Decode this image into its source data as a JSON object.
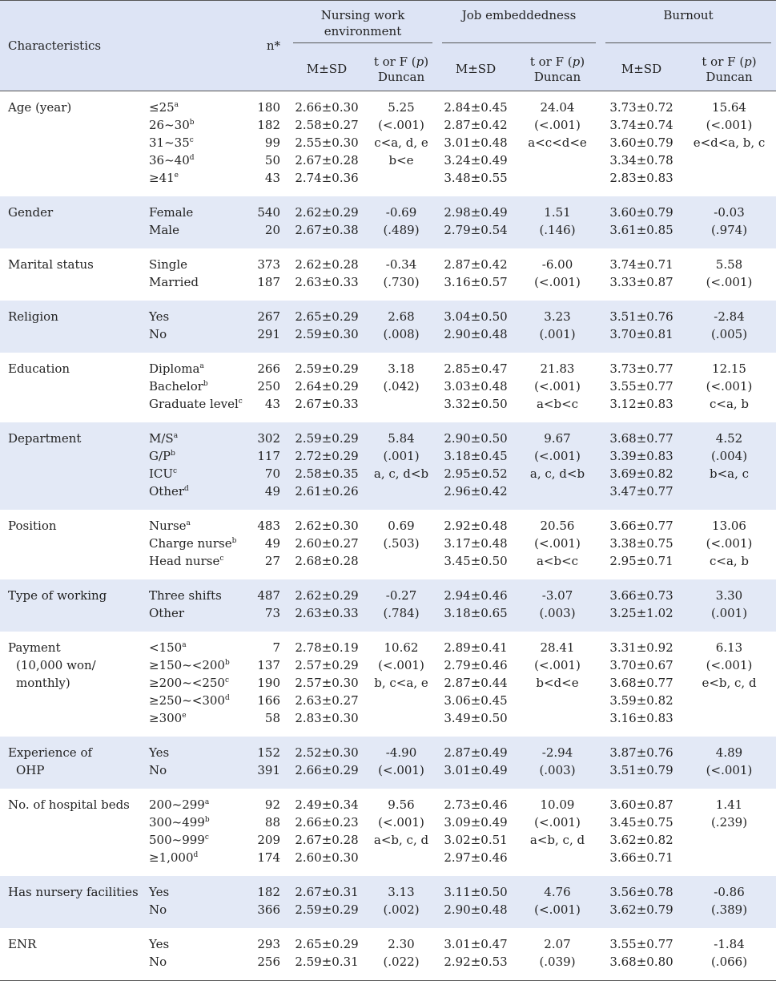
{
  "header": {
    "characteristics": "Characteristics",
    "n": "n*",
    "groups": [
      "Nursing work environment",
      "Job embeddedness",
      "Burnout"
    ],
    "group1_lines": [
      "Nursing work",
      "environment"
    ],
    "msd": "M±SD",
    "stat_line1_prefix": "t or F (",
    "stat_p": "p",
    "stat_line1_suffix": ")",
    "stat_line2": "Duncan"
  },
  "rows": [
    {
      "char": [
        "Age (year)"
      ],
      "cats": [
        {
          "t": "≤25",
          "s": "a"
        },
        {
          "t": "26~30",
          "s": "b"
        },
        {
          "t": "31~35",
          "s": "c"
        },
        {
          "t": "36~40",
          "s": "d"
        },
        {
          "t": "≥41",
          "s": "e"
        }
      ],
      "n": [
        "180",
        "182",
        "99",
        "50",
        "43"
      ],
      "nwe_msd": [
        "2.66±0.30",
        "2.58±0.27",
        "2.55±0.30",
        "2.67±0.28",
        "2.74±0.36"
      ],
      "nwe_t": [
        "5.25",
        "(<.001)",
        "c<a, d, e",
        "b<e"
      ],
      "je_msd": [
        "2.84±0.45",
        "2.87±0.42",
        "3.01±0.48",
        "3.24±0.49",
        "3.48±0.55"
      ],
      "je_t": [
        "24.04",
        "(<.001)",
        "a<c<d<e"
      ],
      "bo_msd": [
        "3.73±0.72",
        "3.74±0.74",
        "3.60±0.79",
        "3.34±0.78",
        "2.83±0.83"
      ],
      "bo_t": [
        "15.64",
        "(<.001)",
        "e<d<a, b, c"
      ]
    },
    {
      "char": [
        "Gender"
      ],
      "cats": [
        {
          "t": "Female",
          "s": ""
        },
        {
          "t": "Male",
          "s": ""
        }
      ],
      "n": [
        "540",
        "20"
      ],
      "nwe_msd": [
        "2.62±0.29",
        "2.67±0.38"
      ],
      "nwe_t": [
        "-0.69",
        "(.489)"
      ],
      "je_msd": [
        "2.98±0.49",
        "2.79±0.54"
      ],
      "je_t": [
        "1.51",
        "(.146)"
      ],
      "bo_msd": [
        "3.60±0.79",
        "3.61±0.85"
      ],
      "bo_t": [
        "-0.03",
        "(.974)"
      ]
    },
    {
      "char": [
        "Marital status"
      ],
      "cats": [
        {
          "t": "Single",
          "s": ""
        },
        {
          "t": "Married",
          "s": ""
        }
      ],
      "n": [
        "373",
        "187"
      ],
      "nwe_msd": [
        "2.62±0.28",
        "2.63±0.33"
      ],
      "nwe_t": [
        "-0.34",
        "(.730)"
      ],
      "je_msd": [
        "2.87±0.42",
        "3.16±0.57"
      ],
      "je_t": [
        "-6.00",
        "(<.001)"
      ],
      "bo_msd": [
        "3.74±0.71",
        "3.33±0.87"
      ],
      "bo_t": [
        "5.58",
        "(<.001)"
      ]
    },
    {
      "char": [
        "Religion"
      ],
      "cats": [
        {
          "t": "Yes",
          "s": ""
        },
        {
          "t": "No",
          "s": ""
        }
      ],
      "n": [
        "267",
        "291"
      ],
      "nwe_msd": [
        "2.65±0.29",
        "2.59±0.30"
      ],
      "nwe_t": [
        "2.68",
        "(.008)"
      ],
      "je_msd": [
        "3.04±0.50",
        "2.90±0.48"
      ],
      "je_t": [
        "3.23",
        "(.001)"
      ],
      "bo_msd": [
        "3.51±0.76",
        "3.70±0.81"
      ],
      "bo_t": [
        "-2.84",
        "(.005)"
      ]
    },
    {
      "char": [
        "Education"
      ],
      "cats": [
        {
          "t": "Diploma",
          "s": "a"
        },
        {
          "t": "Bachelor",
          "s": "b"
        },
        {
          "t": "Graduate level",
          "s": "c"
        }
      ],
      "n": [
        "266",
        "250",
        "43"
      ],
      "nwe_msd": [
        "2.59±0.29",
        "2.64±0.29",
        "2.67±0.33"
      ],
      "nwe_t": [
        "3.18",
        "(.042)"
      ],
      "je_msd": [
        "2.85±0.47",
        "3.03±0.48",
        "3.32±0.50"
      ],
      "je_t": [
        "21.83",
        "(<.001)",
        "a<b<c"
      ],
      "bo_msd": [
        "3.73±0.77",
        "3.55±0.77",
        "3.12±0.83"
      ],
      "bo_t": [
        "12.15",
        "(<.001)",
        "c<a, b"
      ]
    },
    {
      "char": [
        "Department"
      ],
      "cats": [
        {
          "t": "M/S",
          "s": "a"
        },
        {
          "t": "G/P",
          "s": "b"
        },
        {
          "t": "ICU",
          "s": "c"
        },
        {
          "t": "Other",
          "s": "d"
        }
      ],
      "n": [
        "302",
        "117",
        "70",
        "49"
      ],
      "nwe_msd": [
        "2.59±0.29",
        "2.72±0.29",
        "2.58±0.35",
        "2.61±0.26"
      ],
      "nwe_t": [
        "5.84",
        "(.001)",
        "a, c, d<b"
      ],
      "je_msd": [
        "2.90±0.50",
        "3.18±0.45",
        "2.95±0.52",
        "2.96±0.42"
      ],
      "je_t": [
        "9.67",
        "(<.001)",
        "a, c, d<b"
      ],
      "bo_msd": [
        "3.68±0.77",
        "3.39±0.83",
        "3.69±0.82",
        "3.47±0.77"
      ],
      "bo_t": [
        "4.52",
        "(.004)",
        "b<a, c"
      ]
    },
    {
      "char": [
        "Position"
      ],
      "cats": [
        {
          "t": "Nurse",
          "s": "a"
        },
        {
          "t": "Charge nurse",
          "s": "b"
        },
        {
          "t": "Head nurse",
          "s": "c"
        }
      ],
      "n": [
        "483",
        "49",
        "27"
      ],
      "nwe_msd": [
        "2.62±0.30",
        "2.60±0.27",
        "2.68±0.28"
      ],
      "nwe_t": [
        "0.69",
        "(.503)"
      ],
      "je_msd": [
        "2.92±0.48",
        "3.17±0.48",
        "3.45±0.50"
      ],
      "je_t": [
        "20.56",
        "(<.001)",
        "a<b<c"
      ],
      "bo_msd": [
        "3.66±0.77",
        "3.38±0.75",
        "2.95±0.71"
      ],
      "bo_t": [
        "13.06",
        "(<.001)",
        "c<a, b"
      ]
    },
    {
      "char": [
        "Type of working"
      ],
      "cats": [
        {
          "t": "Three shifts",
          "s": ""
        },
        {
          "t": "Other",
          "s": ""
        }
      ],
      "n": [
        "487",
        "73"
      ],
      "nwe_msd": [
        "2.62±0.29",
        "2.63±0.33"
      ],
      "nwe_t": [
        "-0.27",
        "(.784)"
      ],
      "je_msd": [
        "2.94±0.46",
        "3.18±0.65"
      ],
      "je_t": [
        "-3.07",
        "(.003)"
      ],
      "bo_msd": [
        "3.66±0.73",
        "3.25±1.02"
      ],
      "bo_t": [
        "3.30",
        "(.001)"
      ]
    },
    {
      "char": [
        "Payment",
        "(10,000 won/",
        "monthly)"
      ],
      "cats": [
        {
          "t": "<150",
          "s": "a"
        },
        {
          "t": "≥150~<200",
          "s": "b"
        },
        {
          "t": "≥200~<250",
          "s": "c"
        },
        {
          "t": "≥250~<300",
          "s": "d"
        },
        {
          "t": "≥300",
          "s": "e"
        }
      ],
      "n": [
        "7",
        "137",
        "190",
        "166",
        "58"
      ],
      "nwe_msd": [
        "2.78±0.19",
        "2.57±0.29",
        "2.57±0.30",
        "2.63±0.27",
        "2.83±0.30"
      ],
      "nwe_t": [
        "10.62",
        "(<.001)",
        "b, c<a, e"
      ],
      "je_msd": [
        "2.89±0.41",
        "2.79±0.46",
        "2.87±0.44",
        "3.06±0.45",
        "3.49±0.50"
      ],
      "je_t": [
        "28.41",
        "(<.001)",
        "b<d<e"
      ],
      "bo_msd": [
        "3.31±0.92",
        "3.70±0.67",
        "3.68±0.77",
        "3.59±0.82",
        "3.16±0.83"
      ],
      "bo_t": [
        "6.13",
        "(<.001)",
        "e<b, c, d"
      ]
    },
    {
      "char": [
        "Experience of",
        "OHP"
      ],
      "cats": [
        {
          "t": "Yes",
          "s": ""
        },
        {
          "t": "No",
          "s": ""
        }
      ],
      "n": [
        "152",
        "391"
      ],
      "nwe_msd": [
        "2.52±0.30",
        "2.66±0.29"
      ],
      "nwe_t": [
        "-4.90",
        "(<.001)"
      ],
      "je_msd": [
        "2.87±0.49",
        "3.01±0.49"
      ],
      "je_t": [
        "-2.94",
        "(.003)"
      ],
      "bo_msd": [
        "3.87±0.76",
        "3.51±0.79"
      ],
      "bo_t": [
        "4.89",
        "(<.001)"
      ]
    },
    {
      "char": [
        "No. of hospital beds"
      ],
      "cats": [
        {
          "t": "200~299",
          "s": "a"
        },
        {
          "t": "300~499",
          "s": "b"
        },
        {
          "t": "500~999",
          "s": "c"
        },
        {
          "t": "≥1,000",
          "s": "d"
        }
      ],
      "n": [
        "92",
        "88",
        "209",
        "174"
      ],
      "nwe_msd": [
        "2.49±0.34",
        "2.66±0.23",
        "2.67±0.28",
        "2.60±0.30"
      ],
      "nwe_t": [
        "9.56",
        "(<.001)",
        "a<b, c, d"
      ],
      "je_msd": [
        "2.73±0.46",
        "3.09±0.49",
        "3.02±0.51",
        "2.97±0.46"
      ],
      "je_t": [
        "10.09",
        "(<.001)",
        "a<b, c, d"
      ],
      "bo_msd": [
        "3.60±0.87",
        "3.45±0.75",
        "3.62±0.82",
        "3.66±0.71"
      ],
      "bo_t": [
        "1.41",
        "(.239)"
      ]
    },
    {
      "char": [
        "Has nursery facilities"
      ],
      "cats": [
        {
          "t": "Yes",
          "s": ""
        },
        {
          "t": "No",
          "s": ""
        }
      ],
      "n": [
        "182",
        "366"
      ],
      "nwe_msd": [
        "2.67±0.31",
        "2.59±0.29"
      ],
      "nwe_t": [
        "3.13",
        "(.002)"
      ],
      "je_msd": [
        "3.11±0.50",
        "2.90±0.48"
      ],
      "je_t": [
        "4.76",
        "(<.001)"
      ],
      "bo_msd": [
        "3.56±0.78",
        "3.62±0.79"
      ],
      "bo_t": [
        "-0.86",
        "(.389)"
      ]
    },
    {
      "char": [
        "ENR"
      ],
      "cats": [
        {
          "t": "Yes",
          "s": ""
        },
        {
          "t": "No",
          "s": ""
        }
      ],
      "n": [
        "293",
        "256"
      ],
      "nwe_msd": [
        "2.65±0.29",
        "2.59±0.31"
      ],
      "nwe_t": [
        "2.30",
        "(.022)"
      ],
      "je_msd": [
        "3.01±0.47",
        "2.92±0.53"
      ],
      "je_t": [
        "2.07",
        "(.039)"
      ],
      "bo_msd": [
        "3.55±0.77",
        "3.68±0.80"
      ],
      "bo_t": [
        "-1.84",
        "(.066)"
      ]
    }
  ]
}
